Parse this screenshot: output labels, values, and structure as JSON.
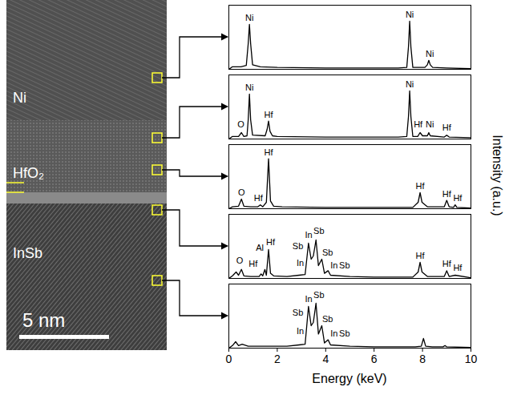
{
  "chart_data": {
    "type": "line",
    "xlabel": "Energy (keV)",
    "ylabel": "Intensity (a.u.)",
    "xlim": [
      0,
      10
    ],
    "xticks": [
      0,
      2,
      4,
      6,
      8,
      10
    ],
    "ylim": [
      0,
      100
    ],
    "tick_labels": "x",
    "color": "#000000",
    "panels": [
      {
        "x": [
          0,
          0.15,
          0.5,
          0.72,
          0.8,
          0.85,
          0.9,
          0.98,
          1.3,
          2,
          4,
          6,
          7,
          7.35,
          7.42,
          7.47,
          7.52,
          7.6,
          8.1,
          8.2,
          8.26,
          8.32,
          8.42,
          9,
          10
        ],
        "values": [
          0,
          4,
          4,
          6,
          40,
          70,
          40,
          7,
          4,
          3,
          2,
          2,
          2,
          3,
          35,
          75,
          35,
          3,
          3,
          7,
          14,
          7,
          3,
          2,
          1
        ],
        "annotations": [
          {
            "x": 0.85,
            "y": 80,
            "text": "Ni"
          },
          {
            "x": 7.47,
            "y": 85,
            "text": "Ni"
          },
          {
            "x": 8.3,
            "y": 24,
            "text": "Ni"
          }
        ]
      },
      {
        "x": [
          0,
          0.15,
          0.4,
          0.52,
          0.62,
          0.75,
          0.8,
          0.85,
          0.9,
          0.98,
          1.5,
          1.58,
          1.64,
          1.7,
          1.8,
          2,
          4,
          6,
          7,
          7.35,
          7.42,
          7.47,
          7.52,
          7.6,
          7.8,
          7.9,
          8.0,
          8.2,
          8.26,
          8.32,
          8.9,
          9.0,
          9.1,
          10
        ],
        "values": [
          0,
          4,
          4,
          10,
          4,
          5,
          30,
          70,
          30,
          6,
          5,
          15,
          28,
          12,
          5,
          4,
          3,
          3,
          3,
          4,
          35,
          75,
          35,
          4,
          4,
          10,
          5,
          5,
          10,
          5,
          3,
          6,
          3,
          2
        ],
        "annotations": [
          {
            "x": 0.85,
            "y": 80,
            "text": "Ni"
          },
          {
            "x": 0.5,
            "y": 22,
            "text": "O"
          },
          {
            "x": 1.64,
            "y": 38,
            "text": "Hf"
          },
          {
            "x": 7.47,
            "y": 85,
            "text": "Ni"
          },
          {
            "x": 7.82,
            "y": 22,
            "text": "Hf"
          },
          {
            "x": 8.3,
            "y": 22,
            "text": "Ni"
          },
          {
            "x": 9.0,
            "y": 18,
            "text": "Hf"
          }
        ]
      },
      {
        "x": [
          0,
          0.15,
          0.4,
          0.52,
          0.62,
          0.9,
          1.2,
          1.3,
          1.4,
          1.55,
          1.64,
          1.72,
          1.85,
          2.2,
          4,
          6,
          7.6,
          7.82,
          7.9,
          7.98,
          8.2,
          8.9,
          9.0,
          9.1,
          9.28,
          9.35,
          9.42,
          10
        ],
        "values": [
          0,
          3,
          4,
          15,
          4,
          3,
          3,
          6,
          3,
          10,
          78,
          12,
          4,
          3,
          2,
          2,
          2,
          10,
          25,
          10,
          3,
          3,
          13,
          3,
          2,
          6,
          2,
          1
        ],
        "annotations": [
          {
            "x": 0.52,
            "y": 25,
            "text": "O"
          },
          {
            "x": 1.22,
            "y": 16,
            "text": "Hf"
          },
          {
            "x": 1.64,
            "y": 88,
            "text": "Hf"
          },
          {
            "x": 7.9,
            "y": 35,
            "text": "Hf"
          },
          {
            "x": 9.0,
            "y": 23,
            "text": "Hf"
          },
          {
            "x": 9.45,
            "y": 16,
            "text": "Hf"
          }
        ]
      },
      {
        "x": [
          0,
          0.15,
          0.3,
          0.4,
          0.52,
          0.62,
          0.9,
          1.25,
          1.33,
          1.4,
          1.49,
          1.55,
          1.64,
          1.72,
          1.85,
          2.4,
          2.9,
          3.15,
          3.29,
          3.4,
          3.49,
          3.6,
          3.7,
          3.84,
          3.95,
          4.1,
          4.2,
          5,
          6,
          7.6,
          7.82,
          7.9,
          7.98,
          8.2,
          8.9,
          9.0,
          9.1,
          9.35,
          10
        ],
        "values": [
          0,
          4,
          10,
          5,
          14,
          4,
          3,
          3,
          7,
          4,
          14,
          5,
          45,
          8,
          4,
          3,
          5,
          6,
          55,
          30,
          35,
          60,
          20,
          30,
          8,
          12,
          5,
          3,
          2,
          2,
          10,
          25,
          10,
          3,
          3,
          12,
          3,
          5,
          1
        ],
        "annotations": [
          {
            "x": 0.45,
            "y": 28,
            "text": "O"
          },
          {
            "x": 1.0,
            "y": 22,
            "text": "Hf"
          },
          {
            "x": 1.28,
            "y": 48,
            "text": "Al"
          },
          {
            "x": 1.72,
            "y": 56,
            "text": "Hf"
          },
          {
            "x": 2.85,
            "y": 50,
            "text": "Sb"
          },
          {
            "x": 3.3,
            "y": 68,
            "text": "In"
          },
          {
            "x": 3.72,
            "y": 74,
            "text": "Sb"
          },
          {
            "x": 2.95,
            "y": 24,
            "text": "In"
          },
          {
            "x": 4.08,
            "y": 40,
            "text": "Sb"
          },
          {
            "x": 4.35,
            "y": 20,
            "text": "In"
          },
          {
            "x": 4.78,
            "y": 20,
            "text": "Sb"
          },
          {
            "x": 7.9,
            "y": 35,
            "text": "Hf"
          },
          {
            "x": 9.0,
            "y": 22,
            "text": "Hf"
          },
          {
            "x": 9.45,
            "y": 16,
            "text": "Hf"
          }
        ]
      },
      {
        "x": [
          0,
          0.15,
          0.28,
          0.4,
          0.55,
          0.8,
          2.4,
          2.9,
          3.15,
          3.29,
          3.4,
          3.49,
          3.6,
          3.7,
          3.84,
          3.95,
          4.1,
          4.2,
          5,
          6,
          7.7,
          7.95,
          8.04,
          8.13,
          8.4,
          8.85,
          8.93,
          9.0,
          10
        ],
        "values": [
          0,
          4,
          10,
          4,
          6,
          3,
          3,
          5,
          6,
          65,
          35,
          40,
          70,
          22,
          35,
          8,
          13,
          5,
          3,
          2,
          2,
          3,
          15,
          3,
          2,
          2,
          4,
          2,
          1
        ],
        "annotations": [
          {
            "x": 2.85,
            "y": 55,
            "text": "Sb"
          },
          {
            "x": 3.3,
            "y": 76,
            "text": "In"
          },
          {
            "x": 3.72,
            "y": 82,
            "text": "Sb"
          },
          {
            "x": 2.95,
            "y": 26,
            "text": "In"
          },
          {
            "x": 4.08,
            "y": 45,
            "text": "Sb"
          },
          {
            "x": 4.35,
            "y": 22,
            "text": "In"
          },
          {
            "x": 4.78,
            "y": 22,
            "text": "Sb"
          }
        ]
      }
    ]
  },
  "micrograph": {
    "layers": [
      "Ni",
      "HfO₂",
      "InSb"
    ],
    "scale_bar": "5 nm"
  }
}
